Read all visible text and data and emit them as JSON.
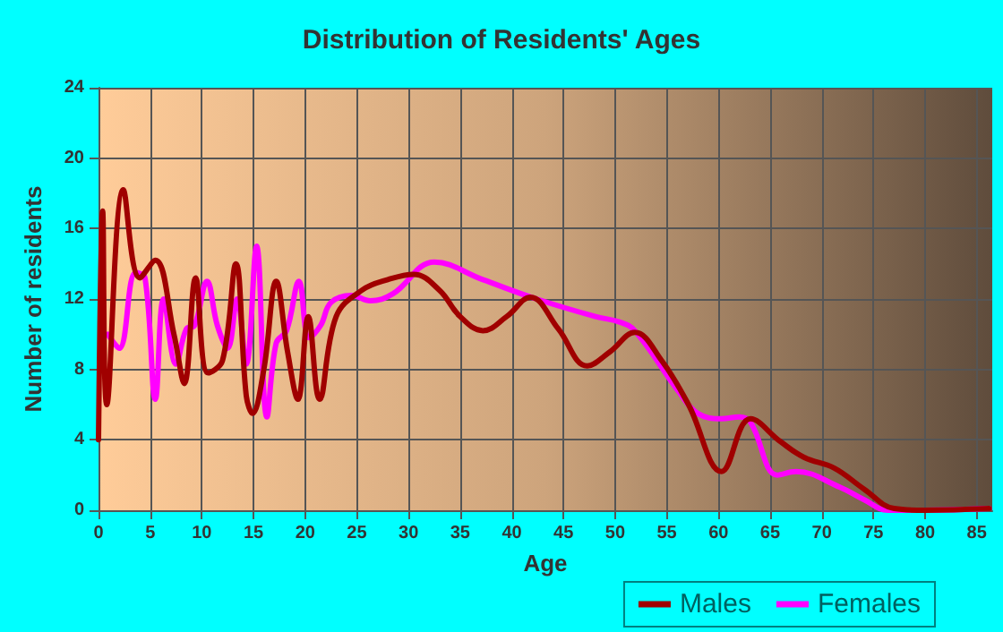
{
  "chart_data": {
    "type": "line",
    "title": "Distribution of Residents' Ages",
    "xlabel": "Age",
    "ylabel": "Number of residents",
    "xlim": [
      0,
      86.5
    ],
    "xticks": [
      0,
      5,
      10,
      15,
      20,
      25,
      30,
      35,
      40,
      45,
      50,
      55,
      60,
      65,
      70,
      75,
      80,
      85
    ],
    "ylim": [
      0,
      24
    ],
    "yticks": [
      0,
      4,
      8,
      12,
      16,
      20,
      24
    ],
    "grid": true,
    "legend": "bottom right",
    "marker": "none",
    "line_style": "solid",
    "series": [
      {
        "name": "Males",
        "color": "#a00000",
        "x": [
          0,
          0.4,
          0.8,
          2.4,
          4,
          5.5,
          7.3,
          8.3,
          9.4,
          10.6,
          12,
          13.3,
          14.3,
          14.9,
          16,
          17.2,
          18.3,
          19.3,
          20.3,
          21.4,
          23,
          25.5,
          28,
          30.5,
          33,
          35,
          37.2,
          39.5,
          41.8,
          44.5,
          47.3,
          49.5,
          51.9,
          54.5,
          57.1,
          60.3,
          63.1,
          66,
          68.3,
          71.2,
          74.1,
          77,
          80,
          86.2
        ],
        "values": [
          4,
          17,
          6,
          18.2,
          13.2,
          14.2,
          10,
          7.2,
          13.2,
          7.8,
          8.5,
          14,
          6.5,
          5.5,
          8,
          13,
          9,
          6.3,
          11,
          6.3,
          11,
          12.5,
          13.1,
          13.4,
          12.5,
          11,
          10.2,
          11,
          12.1,
          10.3,
          8.2,
          9,
          10.1,
          8.5,
          6,
          2.2,
          5.2,
          3.9,
          3,
          2.4,
          1.2,
          0.1,
          0,
          0.1
        ]
      },
      {
        "name": "Females",
        "color": "#ff00ff",
        "x": [
          0.9,
          2,
          3.6,
          4.5,
          5.5,
          6.3,
          7.5,
          8.5,
          9.3,
          10.5,
          11.5,
          12.5,
          13.4,
          14.3,
          15.3,
          16.3,
          17.2,
          18.2,
          19.4,
          20.4,
          21.5,
          22.5,
          24.5,
          26.3,
          28.5,
          32.5,
          37.2,
          42.4,
          48.1,
          50.4,
          51.9,
          56.2,
          58,
          60.3,
          62,
          63.1,
          65.7,
          67.5,
          71.8,
          74.1,
          76.4,
          80,
          86.2
        ],
        "values": [
          10,
          9.2,
          13.5,
          13.2,
          6.3,
          12,
          8.3,
          10.3,
          10.5,
          13,
          10.5,
          9.2,
          12,
          8.3,
          15,
          5.3,
          9.5,
          10.2,
          13,
          9.8,
          10.5,
          11.8,
          12.2,
          11.9,
          12.3,
          14.1,
          13.1,
          12,
          11,
          10.7,
          10.2,
          6.7,
          5.5,
          5.2,
          5.3,
          5,
          2,
          2.2,
          1.3,
          0.6,
          0,
          0,
          0.1
        ]
      }
    ]
  }
}
